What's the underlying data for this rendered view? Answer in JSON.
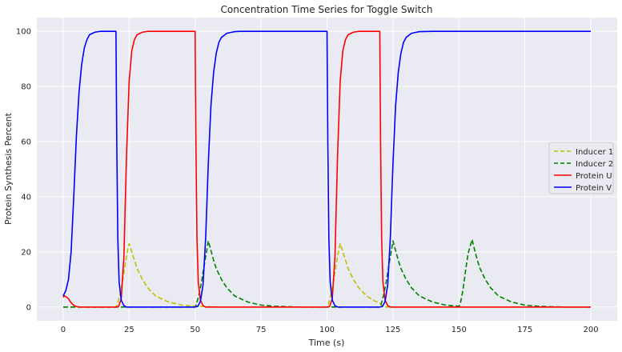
{
  "chart_data": {
    "type": "line",
    "title": "Concentration Time Series for Toggle Switch",
    "xlabel": "Time (s)",
    "ylabel": "Protein Synthesis Percent",
    "xlim": [
      -10,
      210
    ],
    "ylim": [
      -5,
      105
    ],
    "xticks": [
      0,
      25,
      50,
      75,
      100,
      125,
      150,
      175,
      200
    ],
    "yticks": [
      0,
      20,
      40,
      60,
      80,
      100
    ],
    "grid": true,
    "legend_position": "center-right",
    "background_color": "#eaeaf2",
    "grid_color": "#ffffff",
    "series": [
      {
        "name": "Inducer 1",
        "color": "#bfbf00",
        "dashed": true,
        "points": [
          [
            0,
            0
          ],
          [
            20,
            0
          ],
          [
            20.5,
            1
          ],
          [
            21.5,
            4.5
          ],
          [
            22.5,
            9.5
          ],
          [
            23.5,
            15.5
          ],
          [
            24.5,
            21
          ],
          [
            25,
            23
          ],
          [
            26,
            20
          ],
          [
            27,
            17
          ],
          [
            28,
            14
          ],
          [
            30,
            10
          ],
          [
            32,
            7
          ],
          [
            35,
            4
          ],
          [
            40,
            1.8
          ],
          [
            45,
            0.7
          ],
          [
            50,
            0.3
          ],
          [
            55,
            0.1
          ],
          [
            60,
            0
          ],
          [
            100,
            0
          ],
          [
            100.5,
            1
          ],
          [
            101.5,
            4.5
          ],
          [
            102.5,
            9.5
          ],
          [
            103.5,
            15.5
          ],
          [
            104.5,
            21
          ],
          [
            105,
            23
          ],
          [
            106,
            20
          ],
          [
            107,
            17
          ],
          [
            108,
            14
          ],
          [
            110,
            10
          ],
          [
            112,
            7
          ],
          [
            115,
            4
          ],
          [
            118,
            2.2
          ],
          [
            120,
            1.5
          ],
          [
            121,
            0.4
          ],
          [
            122,
            0
          ],
          [
            200,
            0
          ]
        ]
      },
      {
        "name": "Inducer 2",
        "color": "#008000",
        "dashed": true,
        "points": [
          [
            0,
            0
          ],
          [
            50,
            0
          ],
          [
            50.5,
            1
          ],
          [
            51.5,
            4.5
          ],
          [
            52.5,
            9.5
          ],
          [
            53.5,
            15.5
          ],
          [
            54.5,
            21
          ],
          [
            55,
            24
          ],
          [
            56,
            20.5
          ],
          [
            57,
            17
          ],
          [
            58,
            14
          ],
          [
            60,
            10
          ],
          [
            62,
            7
          ],
          [
            65,
            4
          ],
          [
            70,
            1.8
          ],
          [
            75,
            0.7
          ],
          [
            80,
            0.3
          ],
          [
            85,
            0.1
          ],
          [
            90,
            0
          ],
          [
            120,
            0
          ],
          [
            120.5,
            1
          ],
          [
            121.5,
            4.5
          ],
          [
            122.5,
            9.5
          ],
          [
            123.5,
            15.5
          ],
          [
            124.5,
            21
          ],
          [
            125,
            24
          ],
          [
            126,
            20.5
          ],
          [
            127,
            17
          ],
          [
            128,
            14
          ],
          [
            130,
            10
          ],
          [
            132,
            7
          ],
          [
            135,
            4
          ],
          [
            140,
            1.8
          ],
          [
            145,
            0.7
          ],
          [
            150,
            0.3
          ],
          [
            150.5,
            1
          ],
          [
            151.5,
            6
          ],
          [
            152.5,
            13
          ],
          [
            153.5,
            19.5
          ],
          [
            155,
            24.5
          ],
          [
            156,
            20.5
          ],
          [
            157,
            17
          ],
          [
            158,
            14
          ],
          [
            160,
            10
          ],
          [
            162,
            7
          ],
          [
            165,
            4
          ],
          [
            170,
            1.8
          ],
          [
            175,
            0.7
          ],
          [
            180,
            0.3
          ],
          [
            185,
            0.1
          ],
          [
            190,
            0
          ],
          [
            200,
            0
          ]
        ]
      },
      {
        "name": "Protein U",
        "color": "#ff0000",
        "dashed": false,
        "points": [
          [
            0,
            3.5
          ],
          [
            0.5,
            4
          ],
          [
            1,
            3.8
          ],
          [
            2,
            3
          ],
          [
            3,
            1.5
          ],
          [
            4,
            0.6
          ],
          [
            5,
            0.2
          ],
          [
            6,
            0
          ],
          [
            20,
            0
          ],
          [
            21,
            0.2
          ],
          [
            22,
            3
          ],
          [
            23,
            18
          ],
          [
            24,
            55
          ],
          [
            25,
            82
          ],
          [
            26,
            93
          ],
          [
            27,
            97
          ],
          [
            28,
            98.8
          ],
          [
            30,
            99.7
          ],
          [
            32,
            100
          ],
          [
            50,
            100
          ],
          [
            50.3,
            60
          ],
          [
            50.7,
            25
          ],
          [
            51.2,
            9
          ],
          [
            52,
            2.5
          ],
          [
            53,
            0.5
          ],
          [
            54,
            0
          ],
          [
            100,
            0
          ],
          [
            101,
            0.2
          ],
          [
            102,
            3
          ],
          [
            103,
            18
          ],
          [
            104,
            55
          ],
          [
            105,
            82
          ],
          [
            106,
            93
          ],
          [
            107,
            97
          ],
          [
            108,
            98.8
          ],
          [
            110,
            99.7
          ],
          [
            112,
            100
          ],
          [
            120,
            100
          ],
          [
            120.3,
            60
          ],
          [
            120.7,
            25
          ],
          [
            121.2,
            9
          ],
          [
            122,
            2.5
          ],
          [
            123,
            0.5
          ],
          [
            124,
            0
          ],
          [
            200,
            0
          ]
        ]
      },
      {
        "name": "Protein V",
        "color": "#0000ff",
        "dashed": false,
        "points": [
          [
            0,
            4
          ],
          [
            1,
            6
          ],
          [
            2,
            10
          ],
          [
            3,
            20
          ],
          [
            4,
            40
          ],
          [
            5,
            62
          ],
          [
            6,
            78
          ],
          [
            7,
            88
          ],
          [
            8,
            94
          ],
          [
            9,
            97
          ],
          [
            10,
            98.8
          ],
          [
            12,
            99.7
          ],
          [
            14,
            100
          ],
          [
            20,
            100
          ],
          [
            20.3,
            60
          ],
          [
            20.7,
            25
          ],
          [
            21.2,
            9
          ],
          [
            22,
            2.5
          ],
          [
            23,
            0.5
          ],
          [
            24,
            0
          ],
          [
            50,
            0
          ],
          [
            51,
            0.2
          ],
          [
            52,
            2
          ],
          [
            53,
            8
          ],
          [
            54,
            25
          ],
          [
            55,
            52
          ],
          [
            56,
            73
          ],
          [
            57,
            85
          ],
          [
            58,
            92
          ],
          [
            59,
            96
          ],
          [
            60,
            97.8
          ],
          [
            62,
            99.3
          ],
          [
            65,
            99.9
          ],
          [
            67,
            100
          ],
          [
            100,
            100
          ],
          [
            100.3,
            60
          ],
          [
            100.7,
            25
          ],
          [
            101.2,
            9
          ],
          [
            102,
            2.5
          ],
          [
            103,
            0.5
          ],
          [
            104,
            0
          ],
          [
            120,
            0
          ],
          [
            121,
            0.2
          ],
          [
            122,
            2
          ],
          [
            123,
            8
          ],
          [
            124,
            25
          ],
          [
            125,
            52
          ],
          [
            126,
            73
          ],
          [
            127,
            85
          ],
          [
            128,
            92
          ],
          [
            129,
            96
          ],
          [
            130,
            97.8
          ],
          [
            132,
            99.3
          ],
          [
            135,
            99.9
          ],
          [
            140,
            100
          ],
          [
            200,
            100
          ]
        ]
      }
    ]
  }
}
